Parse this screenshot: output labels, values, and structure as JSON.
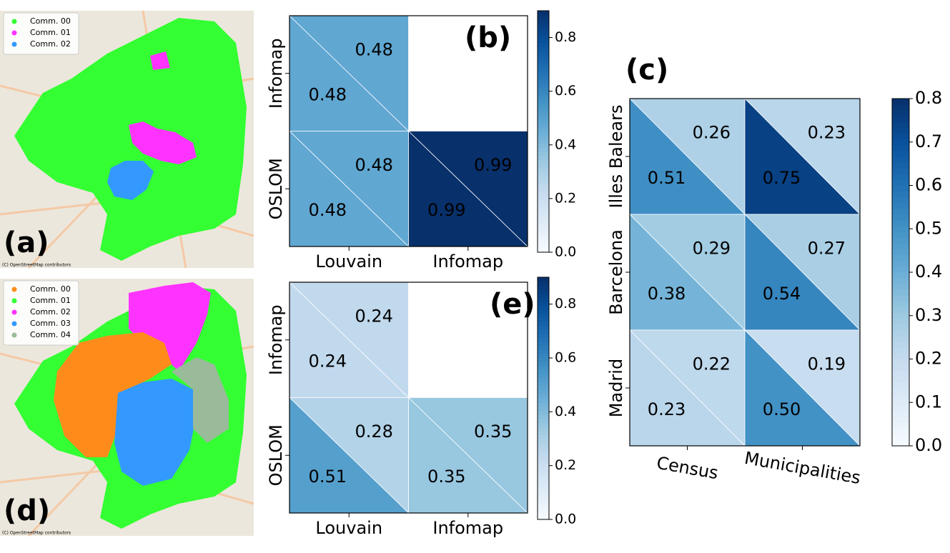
{
  "chart_data": [
    {
      "type": "map",
      "label": "(a)",
      "attribution": "(C) OpenStreetMap contributors",
      "series": [
        {
          "name": "Comm. 00",
          "color": "#33ff33"
        },
        {
          "name": "Comm. 01",
          "color": "#ff33ff"
        },
        {
          "name": "Comm. 02",
          "color": "#3399ff"
        }
      ]
    },
    {
      "type": "heatmap",
      "label": "(b)",
      "rows": [
        "Infomap",
        "OSLOM"
      ],
      "columns": [
        "Louvain",
        "Infomap"
      ],
      "values": {
        "upper": [
          [
            0.48,
            null
          ],
          [
            0.48,
            0.99
          ]
        ],
        "lower": [
          [
            0.48,
            null
          ],
          [
            0.48,
            0.99
          ]
        ]
      },
      "clim": [
        0,
        0.9
      ],
      "cticks": [
        {
          "value": 0,
          "label": "0.0"
        },
        {
          "value": 0.2,
          "label": "0.2"
        },
        {
          "value": 0.4,
          "label": "0.4"
        },
        {
          "value": 0.6,
          "label": "0.6"
        },
        {
          "value": 0.8,
          "label": "0.8"
        }
      ],
      "colormap": "Blues"
    },
    {
      "type": "heatmap",
      "label": "(c)",
      "rows": [
        "Illes Balears",
        "Barcelona",
        "Madrid"
      ],
      "columns": [
        "Census",
        "Municipalities"
      ],
      "values": {
        "upper": [
          [
            0.26,
            0.23
          ],
          [
            0.29,
            0.27
          ],
          [
            0.22,
            0.19
          ]
        ],
        "lower": [
          [
            0.51,
            0.75
          ],
          [
            0.38,
            0.54
          ],
          [
            0.23,
            0.5
          ]
        ]
      },
      "value_labels": {
        "upper": [
          [
            "0.26",
            "0.23"
          ],
          [
            "0.29",
            "0.27"
          ],
          [
            "0.22",
            "0.19"
          ]
        ],
        "lower": [
          [
            "0.51",
            "0.75"
          ],
          [
            "0.38",
            "0.54"
          ],
          [
            "0.23",
            "0.50"
          ]
        ]
      },
      "clim": [
        0,
        0.8
      ],
      "cticks": [
        {
          "value": 0,
          "label": "0.0"
        },
        0.1,
        0.2,
        0.3,
        0.4,
        0.5,
        0.6,
        0.7,
        0.8
      ],
      "colormap": "Blues"
    },
    {
      "type": "map",
      "label": "(d)",
      "attribution": "(C) OpenStreetMap contributors",
      "series": [
        {
          "name": "Comm. 00",
          "color": "#ff8c1a"
        },
        {
          "name": "Comm. 01",
          "color": "#33ff33"
        },
        {
          "name": "Comm. 02",
          "color": "#ff33ff"
        },
        {
          "name": "Comm. 03",
          "color": "#3399ff"
        },
        {
          "name": "Comm. 04",
          "color": "#99bb99"
        }
      ]
    },
    {
      "type": "heatmap",
      "label": "(e)",
      "rows": [
        "Infomap",
        "OSLOM"
      ],
      "columns": [
        "Louvain",
        "Infomap"
      ],
      "values": {
        "upper": [
          [
            0.24,
            null
          ],
          [
            0.28,
            0.35
          ]
        ],
        "lower": [
          [
            0.24,
            null
          ],
          [
            0.51,
            0.35
          ]
        ]
      },
      "clim": [
        0,
        0.9
      ],
      "cticks": [
        {
          "value": 0,
          "label": "0.0"
        },
        {
          "value": 0.2,
          "label": "0.2"
        },
        {
          "value": 0.4,
          "label": "0.4"
        },
        {
          "value": 0.6,
          "label": "0.6"
        },
        {
          "value": 0.8,
          "label": "0.8"
        }
      ],
      "colormap": "Blues"
    }
  ]
}
